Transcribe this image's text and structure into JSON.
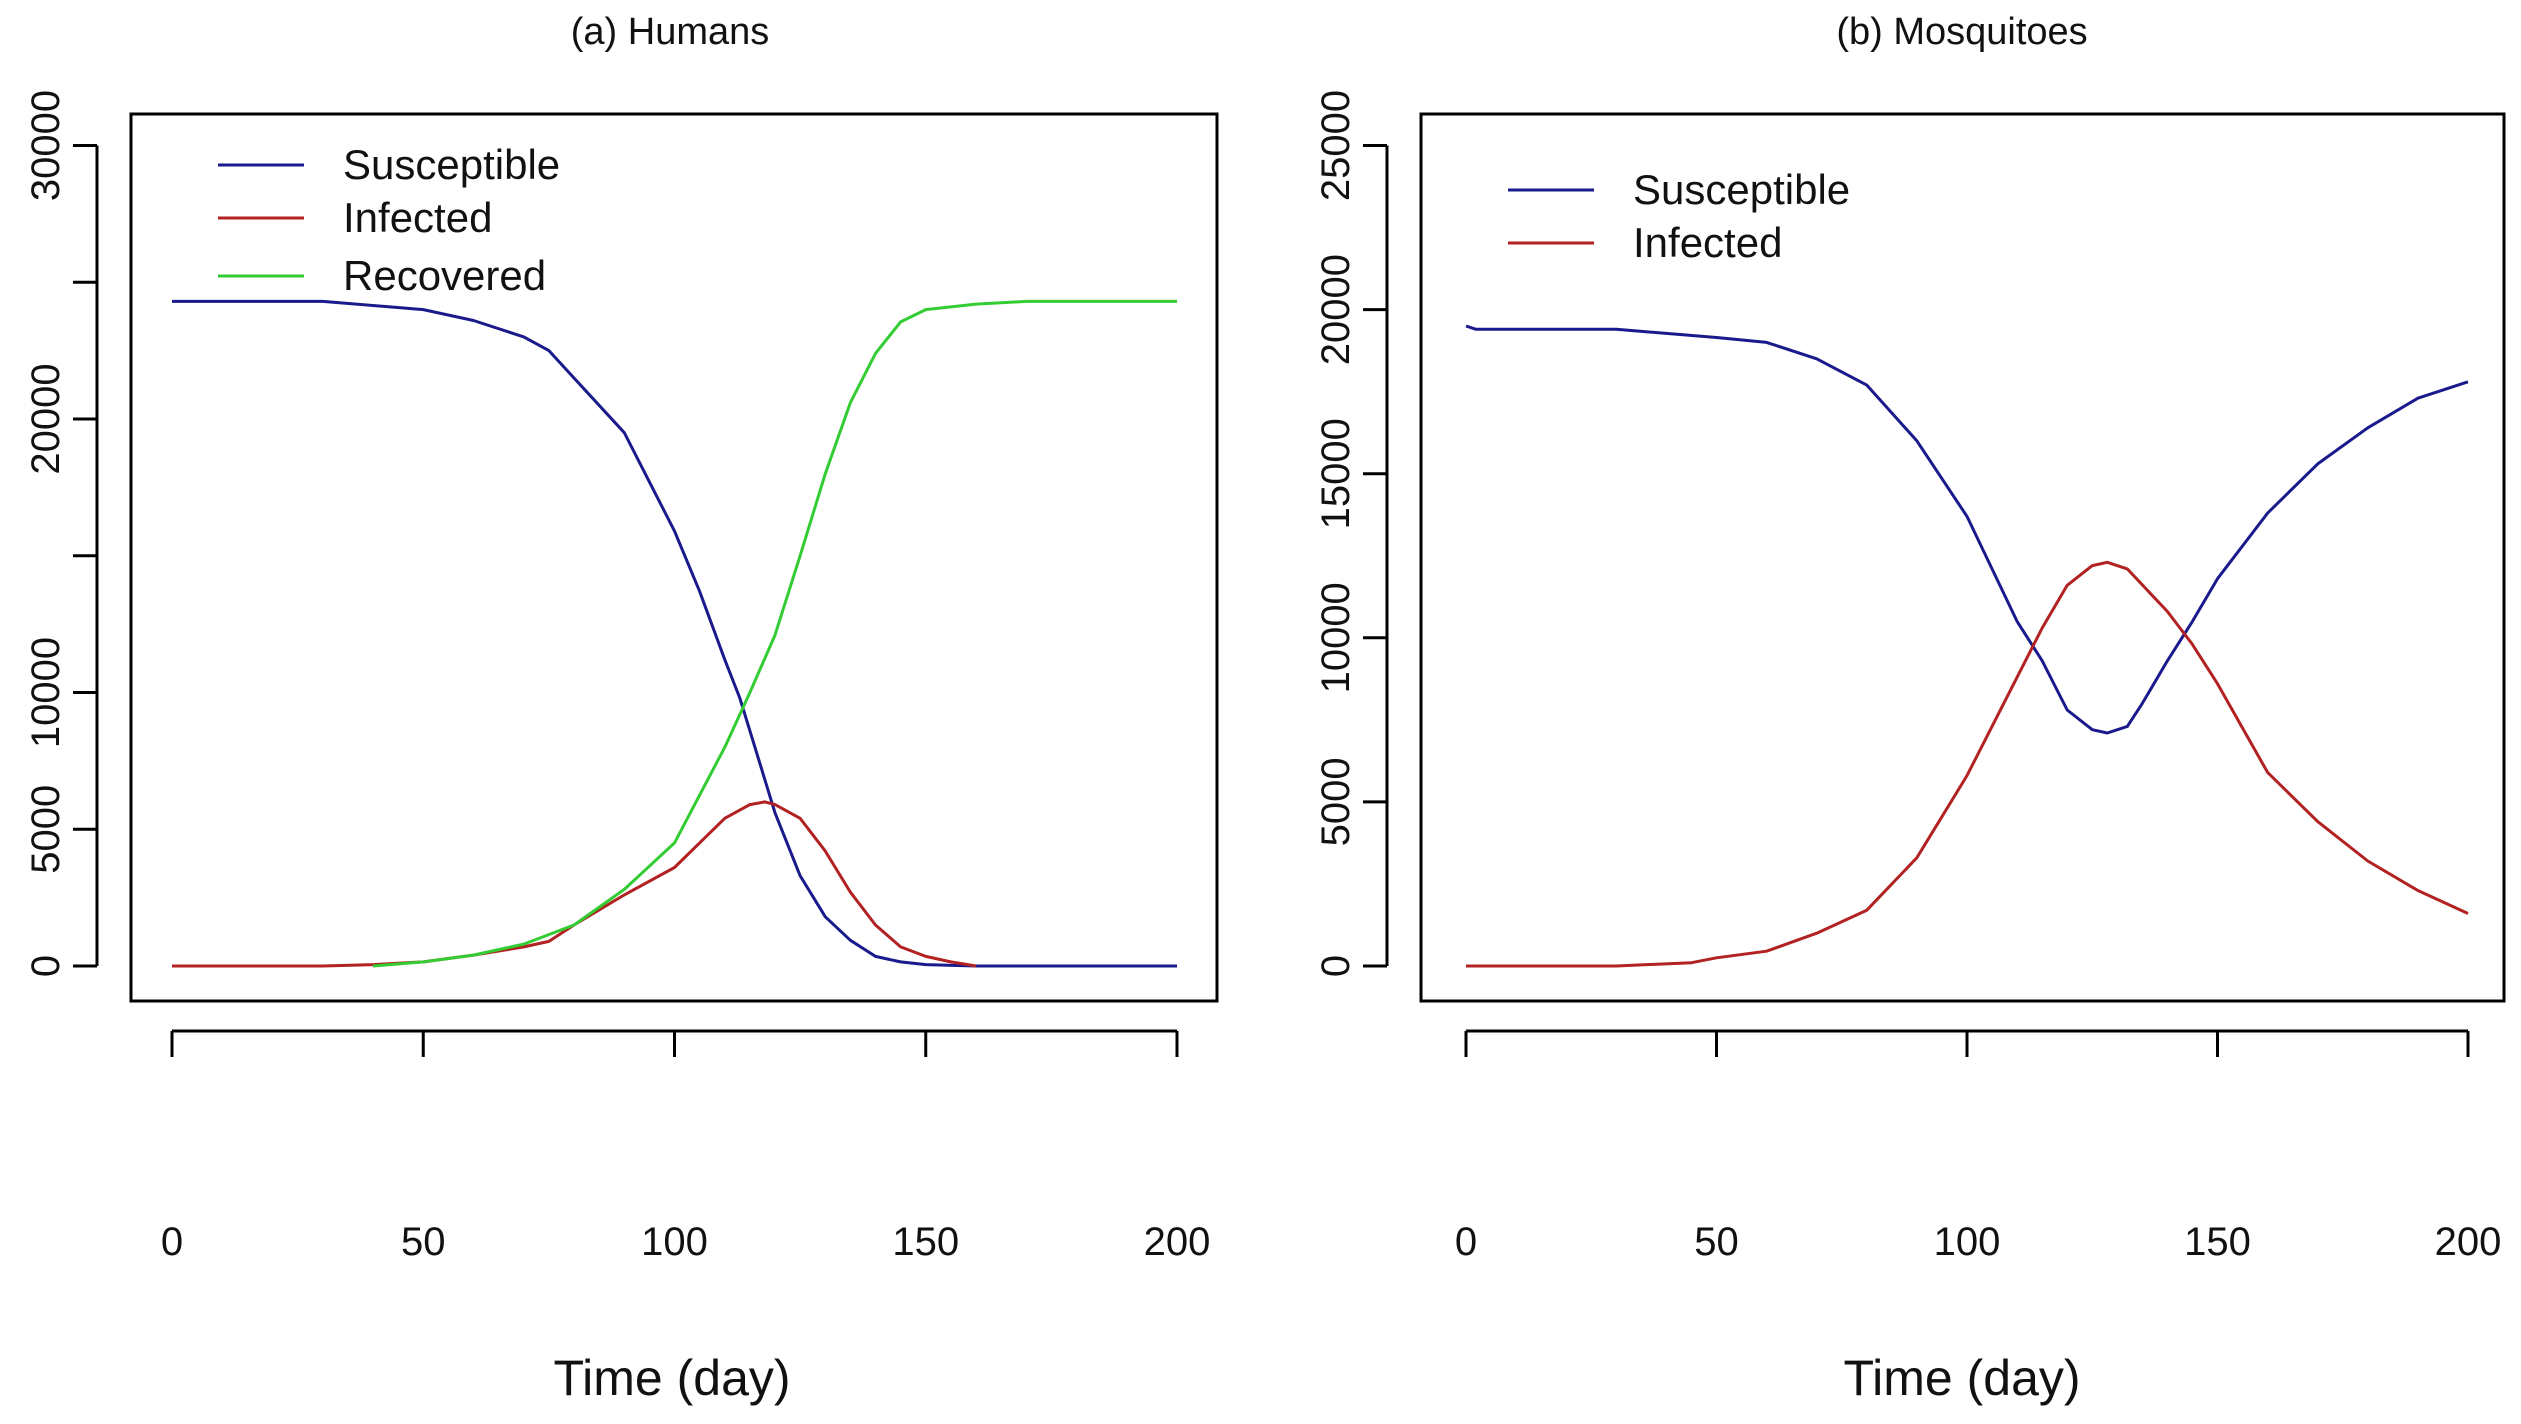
{
  "chart_data": [
    {
      "type": "line",
      "title": "(a) Humans",
      "xlabel": "Time (day)",
      "ylabel": "",
      "xlim": [
        0,
        200
      ],
      "ylim": [
        0,
        30000
      ],
      "xticks": [
        0,
        50,
        100,
        150,
        200
      ],
      "xtick_labels": [
        "0",
        "50",
        "100",
        "150",
        "200"
      ],
      "yticks": [
        0,
        5000,
        10000,
        15000,
        20000,
        25000,
        30000
      ],
      "ytick_labels": [
        "0",
        "5000",
        "10000",
        "",
        "20000",
        "",
        "30000"
      ],
      "grid": false,
      "legend_position": "top-left",
      "series": [
        {
          "name": "Susceptible",
          "color": "#1a1a8c",
          "x": [
            0,
            30,
            50,
            60,
            70,
            75,
            80,
            90,
            100,
            105,
            110,
            113,
            115,
            120,
            125,
            130,
            135,
            140,
            145,
            150,
            160,
            200
          ],
          "y": [
            24300,
            24300,
            24000,
            23600,
            23000,
            22500,
            21500,
            19500,
            15900,
            13700,
            11200,
            9800,
            8600,
            5600,
            3300,
            1800,
            940,
            350,
            150,
            50,
            0,
            0
          ]
        },
        {
          "name": "Infected",
          "color": "#b22222",
          "x": [
            0,
            30,
            40,
            50,
            60,
            70,
            75,
            80,
            90,
            100,
            105,
            110,
            115,
            118,
            120,
            125,
            130,
            135,
            140,
            145,
            150,
            155,
            160
          ],
          "y": [
            0,
            0,
            50,
            150,
            400,
            700,
            900,
            1500,
            2600,
            3600,
            4500,
            5400,
            5900,
            6000,
            5900,
            5400,
            4200,
            2700,
            1500,
            700,
            350,
            150,
            0
          ]
        },
        {
          "name": "Recovered",
          "color": "#33cc33",
          "x": [
            40,
            50,
            60,
            70,
            80,
            90,
            100,
            110,
            115,
            120,
            125,
            130,
            135,
            140,
            145,
            150,
            160,
            170,
            200
          ],
          "y": [
            0,
            150,
            400,
            800,
            1500,
            2800,
            4500,
            8000,
            10000,
            12100,
            15000,
            18000,
            20600,
            22400,
            23550,
            24000,
            24200,
            24300,
            24300
          ]
        }
      ]
    },
    {
      "type": "line",
      "title": "(b) Mosquitoes",
      "xlabel": "Time (day)",
      "ylabel": "",
      "xlim": [
        0,
        200
      ],
      "ylim": [
        0,
        25000
      ],
      "xticks": [
        0,
        50,
        100,
        150,
        200
      ],
      "xtick_labels": [
        "0",
        "50",
        "100",
        "150",
        "200"
      ],
      "yticks": [
        0,
        5000,
        10000,
        15000,
        20000,
        25000
      ],
      "ytick_labels": [
        "0",
        "5000",
        "10000",
        "15000",
        "20000",
        "25000"
      ],
      "grid": false,
      "legend_position": "top-left",
      "series": [
        {
          "name": "Susceptible",
          "color": "#1a1a8c",
          "x": [
            0,
            2,
            30,
            50,
            60,
            70,
            80,
            90,
            100,
            110,
            115,
            120,
            125,
            128,
            132,
            135,
            140,
            145,
            150,
            160,
            170,
            180,
            190,
            200
          ],
          "y": [
            19500,
            19400,
            19400,
            19150,
            19000,
            18500,
            17700,
            16000,
            13700,
            10500,
            9300,
            7800,
            7200,
            7100,
            7300,
            8000,
            9300,
            10500,
            11800,
            13800,
            15300,
            16400,
            17300,
            17800
          ]
        },
        {
          "name": "Infected",
          "color": "#b22222",
          "x": [
            0,
            30,
            45,
            50,
            60,
            70,
            80,
            90,
            100,
            110,
            115,
            120,
            125,
            128,
            132,
            140,
            145,
            150,
            160,
            170,
            180,
            190,
            200
          ],
          "y": [
            0,
            0,
            100,
            250,
            450,
            1000,
            1700,
            3300,
            5800,
            8800,
            10300,
            11600,
            12200,
            12300,
            12100,
            10800,
            9800,
            8600,
            5900,
            4400,
            3200,
            2300,
            1600
          ]
        }
      ]
    }
  ]
}
